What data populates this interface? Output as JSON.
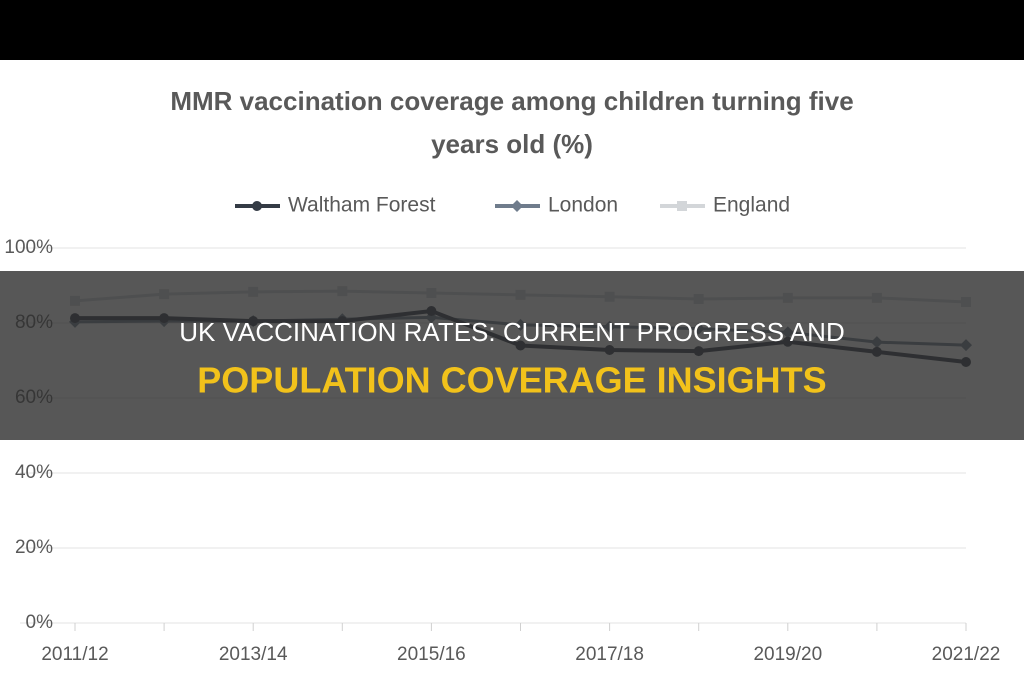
{
  "chart_data": {
    "type": "line",
    "title": [
      "MMR vaccination coverage among children turning five",
      "years old (%)"
    ],
    "categories": [
      "2011/12",
      null,
      "2013/14",
      null,
      "2015/16",
      null,
      "2017/18",
      null,
      "2019/20",
      null,
      "2021/22"
    ],
    "series": [
      {
        "name": "Waltham Forest",
        "color": "#343b45",
        "marker": "circle",
        "values": [
          81.3,
          81.3,
          80.5,
          80.5,
          83.2,
          74,
          72.8,
          72.5,
          75,
          72.3,
          69.6
        ]
      },
      {
        "name": "London",
        "color": "#6f7c8c",
        "marker": "diamond",
        "values": [
          80.3,
          80.5,
          80.5,
          81,
          81.5,
          79.5,
          79,
          78.5,
          77.5,
          74.9,
          74.1
        ]
      },
      {
        "name": "England",
        "color": "#d3d6d9",
        "marker": "square",
        "values": [
          85.9,
          87.7,
          88.3,
          88.5,
          88,
          87.5,
          87,
          86.4,
          86.7,
          86.7,
          85.6
        ]
      }
    ],
    "ylim": [
      0,
      100
    ],
    "yticks": [
      {
        "value": 0,
        "label": "0%"
      },
      {
        "value": 20,
        "label": "20%"
      },
      {
        "value": 40,
        "label": "40%"
      },
      {
        "value": 60,
        "label": "60%"
      },
      {
        "value": 80,
        "label": "80%"
      },
      {
        "value": 100,
        "label": "100%"
      }
    ],
    "grid": true,
    "legend": "top"
  },
  "overlay": {
    "headline": "UK VACCINATION RATES: CURRENT PROGRESS AND",
    "subheadline": "POPULATION COVERAGE INSIGHTS"
  }
}
